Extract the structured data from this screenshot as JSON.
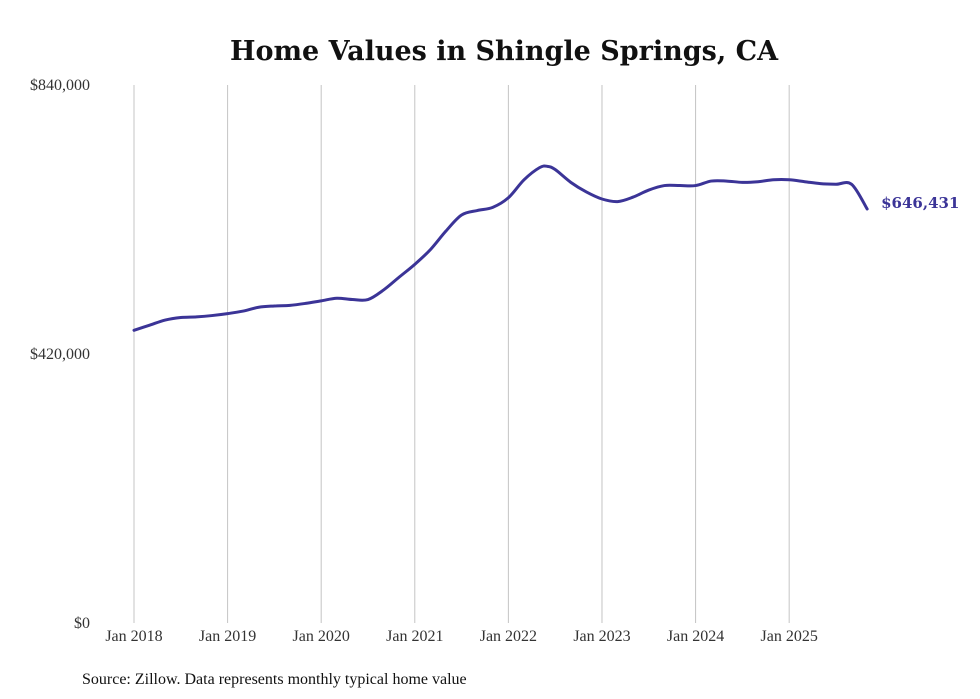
{
  "chart_data": {
    "type": "line",
    "title": "Home Values in Shingle Springs, CA",
    "source": "Source: Zillow. Data represents monthly typical home value",
    "xlabel": "",
    "ylabel": "",
    "ylim": [
      0,
      840000
    ],
    "y_ticks": [
      {
        "value": 0,
        "label": "$0"
      },
      {
        "value": 420000,
        "label": "$420,000"
      },
      {
        "value": 840000,
        "label": "$840,000"
      }
    ],
    "x_range": [
      2018.0,
      2025.917
    ],
    "x_ticks": [
      {
        "value": 2018,
        "label": "Jan 2018"
      },
      {
        "value": 2019,
        "label": "Jan 2019"
      },
      {
        "value": 2020,
        "label": "Jan 2020"
      },
      {
        "value": 2021,
        "label": "Jan 2021"
      },
      {
        "value": 2022,
        "label": "Jan 2022"
      },
      {
        "value": 2023,
        "label": "Jan 2023"
      },
      {
        "value": 2024,
        "label": "Jan 2024"
      },
      {
        "value": 2025,
        "label": "Jan 2025"
      }
    ],
    "grid": "vertical",
    "series": [
      {
        "name": "Typical home value",
        "color": "#3b3497",
        "x": [
          2018.0,
          2018.167,
          2018.333,
          2018.5,
          2018.667,
          2018.833,
          2019.0,
          2019.167,
          2019.333,
          2019.5,
          2019.667,
          2019.833,
          2020.0,
          2020.167,
          2020.333,
          2020.5,
          2020.667,
          2020.833,
          2021.0,
          2021.167,
          2021.333,
          2021.5,
          2021.667,
          2021.833,
          2022.0,
          2022.167,
          2022.333,
          2022.417,
          2022.5,
          2022.667,
          2022.833,
          2023.0,
          2023.167,
          2023.333,
          2023.5,
          2023.667,
          2023.833,
          2024.0,
          2024.167,
          2024.333,
          2024.5,
          2024.667,
          2024.833,
          2025.0,
          2025.167,
          2025.333,
          2025.5,
          2025.667,
          2025.833
        ],
        "values": [
          457000,
          465000,
          473000,
          477000,
          478000,
          480000,
          483000,
          487000,
          493000,
          495000,
          496000,
          499000,
          503000,
          507000,
          505000,
          505000,
          520000,
          540000,
          560000,
          583000,
          612000,
          637000,
          644000,
          649000,
          664000,
          692000,
          711000,
          713000,
          708000,
          688000,
          673000,
          662000,
          658000,
          665000,
          676000,
          683000,
          683000,
          683000,
          690000,
          690000,
          688000,
          689000,
          692000,
          692000,
          689000,
          686000,
          685000,
          685000,
          646431
        ],
        "end_label": "$646,431"
      }
    ]
  }
}
